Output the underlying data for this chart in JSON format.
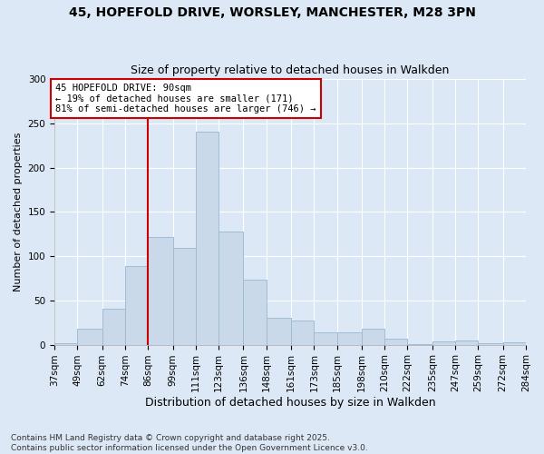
{
  "title_line1": "45, HOPEFOLD DRIVE, WORSLEY, MANCHESTER, M28 3PN",
  "title_line2": "Size of property relative to detached houses in Walkden",
  "xlabel": "Distribution of detached houses by size in Walkden",
  "ylabel": "Number of detached properties",
  "bar_color": "#c9d9ea",
  "bar_edge_color": "#a0bcd4",
  "background_color": "#dce8f5",
  "plot_bg_color": "#dce8f5",
  "vline_x": 86,
  "vline_color": "#cc0000",
  "annotation_text": "45 HOPEFOLD DRIVE: 90sqm\n← 19% of detached houses are smaller (171)\n81% of semi-detached houses are larger (746) →",
  "annotation_box_color": "white",
  "annotation_box_edge": "#cc0000",
  "footer_text": "Contains HM Land Registry data © Crown copyright and database right 2025.\nContains public sector information licensed under the Open Government Licence v3.0.",
  "bin_edges": [
    37,
    49,
    62,
    74,
    86,
    99,
    111,
    123,
    136,
    148,
    161,
    173,
    185,
    198,
    210,
    222,
    235,
    247,
    259,
    272,
    284
  ],
  "bin_labels": [
    "37sqm",
    "49sqm",
    "62sqm",
    "74sqm",
    "86sqm",
    "99sqm",
    "111sqm",
    "123sqm",
    "136sqm",
    "148sqm",
    "161sqm",
    "173sqm",
    "185sqm",
    "198sqm",
    "210sqm",
    "222sqm",
    "235sqm",
    "247sqm",
    "259sqm",
    "272sqm",
    "284sqm"
  ],
  "bar_heights": [
    2,
    18,
    41,
    89,
    122,
    109,
    241,
    128,
    73,
    30,
    27,
    14,
    14,
    18,
    7,
    1,
    4,
    5,
    2,
    3
  ],
  "ylim": [
    0,
    300
  ],
  "yticks": [
    0,
    50,
    100,
    150,
    200,
    250,
    300
  ],
  "grid_color": "#ffffff",
  "title_fontsize": 10,
  "subtitle_fontsize": 9,
  "ylabel_fontsize": 8,
  "xlabel_fontsize": 9,
  "tick_fontsize": 7.5,
  "annot_fontsize": 7.5,
  "footer_fontsize": 6.5
}
